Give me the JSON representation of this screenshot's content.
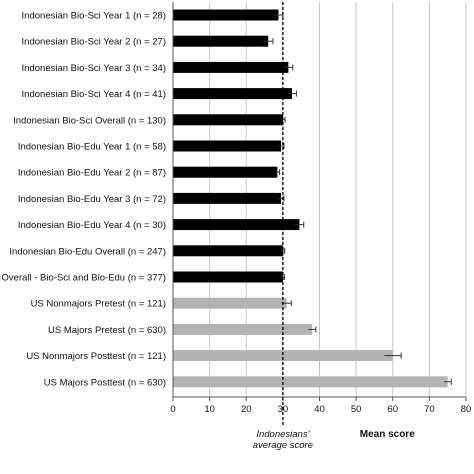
{
  "chart_data": {
    "type": "bar",
    "orientation": "horizontal",
    "title": "",
    "xlabel": "Mean score",
    "ylabel": "",
    "xlim": [
      0,
      80
    ],
    "xticks": [
      "0",
      "10",
      "20",
      "30",
      "40",
      "50",
      "60",
      "70",
      "80"
    ],
    "grid": "vertical",
    "colors": {
      "indonesian": "#000000",
      "us": "#b3b3b3",
      "grid": "#c8c8c8",
      "axis": "#555555"
    },
    "reference_line": {
      "value": 30,
      "label_line1": "Indonesians'",
      "label_line2": "average score"
    },
    "categories": [
      "Indonesian Bio-Sci Year 1 (n = 28)",
      "Indonesian Bio-Sci Year 2 (n = 27)",
      "Indonesian Bio-Sci Year 3 (n = 34)",
      "Indonesian Bio-Sci Year 4 (n = 41)",
      "Indonesian Bio-Sci Overall (n = 130)",
      "Indonesian Bio-Edu Year 1 (n = 58)",
      "Indonesian Bio-Edu Year 2 (n = 87)",
      "Indonesian Bio-Edu Year 3 (n = 72)",
      "Indonesian Bio-Edu Year 4 (n = 30)",
      "Indonesian Bio-Edu Overall (n = 247)",
      "Overall - Bio-Sci and Bio-Edu (n = 377)",
      "US Nonmajors Pretest (n = 121)",
      "US Majors Pretest (n = 630)",
      "US Nonmajors Posttest (n = 121)",
      "US Majors Posttest (n = 630)"
    ],
    "values": [
      28.8,
      26,
      31.5,
      32.5,
      30,
      29.5,
      28.5,
      29.5,
      34.5,
      30,
      30,
      31,
      38,
      60,
      75
    ],
    "errors": [
      1.2,
      1.3,
      1.2,
      1.2,
      0.6,
      0.8,
      0.6,
      0.8,
      1.2,
      0.5,
      0.4,
      1.3,
      1,
      2.3,
      1
    ],
    "groups": [
      "indonesian",
      "indonesian",
      "indonesian",
      "indonesian",
      "indonesian",
      "indonesian",
      "indonesian",
      "indonesian",
      "indonesian",
      "indonesian",
      "indonesian",
      "us",
      "us",
      "us",
      "us"
    ]
  }
}
